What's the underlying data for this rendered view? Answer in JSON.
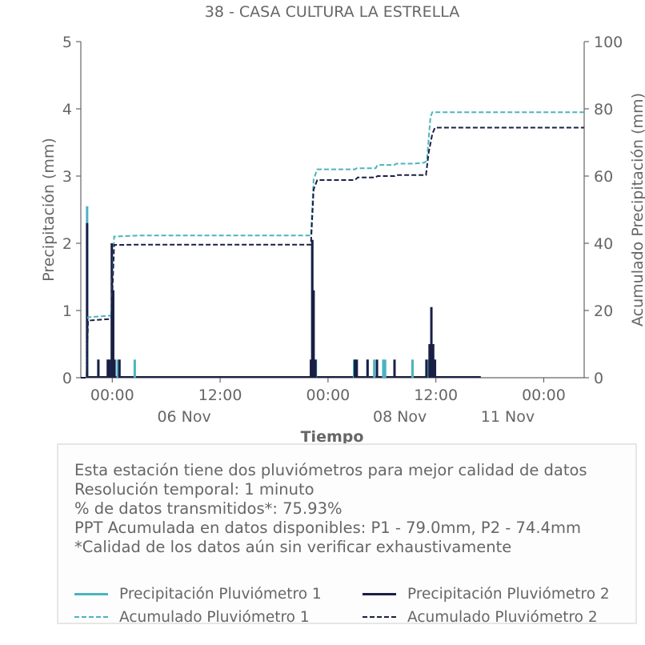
{
  "chart_data": {
    "type": "line",
    "title": "38 - CASA CULTURA LA ESTRELLA",
    "xlabel": "Tiempo",
    "ylabel": "Precipitación (mm)",
    "ylabel_right": "Acumulado Precipitación (mm)",
    "ylim": [
      0,
      5
    ],
    "ylim_right": [
      0,
      100
    ],
    "yticks": [
      "0",
      "1",
      "2",
      "3",
      "4",
      "5"
    ],
    "yticks_right": [
      "0",
      "20",
      "40",
      "60",
      "80",
      "100"
    ],
    "x_range_hours": [
      -3.5,
      52.5
    ],
    "xticks": [
      {
        "hour": 0,
        "label": "00:00",
        "sublabel": ""
      },
      {
        "hour": 12,
        "label": "12:00",
        "sublabel": "06 Nov"
      },
      {
        "hour": 24,
        "label": "00:00",
        "sublabel": ""
      },
      {
        "hour": 36,
        "label": "12:00",
        "sublabel": "08 Nov"
      },
      {
        "hour": 48,
        "label": "00:00",
        "sublabel": "11 Nov"
      }
    ],
    "grid": false,
    "colors": {
      "p1": "#4cb3bf",
      "p2": "#1a1f45",
      "axis": "#666666"
    },
    "series": [
      {
        "name": "Precipitación Pluviómetro 1",
        "axis": "left",
        "style": "bars",
        "points": [
          [
            -2.8,
            2.55
          ],
          [
            -1.55,
            0.27
          ],
          [
            -0.45,
            0.27
          ],
          [
            -0.05,
            1.0
          ],
          [
            0.1,
            1.3
          ],
          [
            0.6,
            0.27
          ],
          [
            2.5,
            0.27
          ],
          [
            22.25,
            2.05
          ],
          [
            22.65,
            0.27
          ],
          [
            26.9,
            0.27
          ],
          [
            28.4,
            0.27
          ],
          [
            29.15,
            0.27
          ],
          [
            30.15,
            0.27
          ],
          [
            30.35,
            0.27
          ],
          [
            33.4,
            0.27
          ],
          [
            35.1,
            0.27
          ],
          [
            35.35,
            0.27
          ],
          [
            35.55,
            0.5
          ],
          [
            35.65,
            0.3
          ],
          [
            35.9,
            0.27
          ]
        ]
      },
      {
        "name": "Precipitación Pluviómetro 2",
        "axis": "left",
        "style": "bars",
        "points": [
          [
            -2.8,
            2.3
          ],
          [
            -1.55,
            0.27
          ],
          [
            -0.5,
            0.27
          ],
          [
            -0.3,
            0.27
          ],
          [
            -0.05,
            2.0
          ],
          [
            0.1,
            1.3
          ],
          [
            0.25,
            0.27
          ],
          [
            0.8,
            0.27
          ],
          [
            22.1,
            0.27
          ],
          [
            22.25,
            2.05
          ],
          [
            22.4,
            1.3
          ],
          [
            22.6,
            0.27
          ],
          [
            27.0,
            0.27
          ],
          [
            27.2,
            0.27
          ],
          [
            28.4,
            0.27
          ],
          [
            29.45,
            0.27
          ],
          [
            31.4,
            0.27
          ],
          [
            34.95,
            0.27
          ],
          [
            35.3,
            0.5
          ],
          [
            35.5,
            1.05
          ],
          [
            35.7,
            0.5
          ],
          [
            35.9,
            0.27
          ]
        ]
      },
      {
        "name": "Acumulado Pluviómetro 1",
        "axis": "right",
        "style": "dashed",
        "points": [
          [
            -3.5,
            0
          ],
          [
            -2.85,
            0
          ],
          [
            -2.7,
            18.0
          ],
          [
            -0.1,
            18.5
          ],
          [
            0.2,
            42.0
          ],
          [
            3.0,
            42.3
          ],
          [
            22.1,
            42.3
          ],
          [
            22.4,
            59.0
          ],
          [
            22.8,
            62.0
          ],
          [
            27.0,
            62.0
          ],
          [
            27.2,
            62.3
          ],
          [
            29.3,
            62.3
          ],
          [
            29.5,
            63.3
          ],
          [
            31.4,
            63.3
          ],
          [
            31.6,
            63.7
          ],
          [
            33.6,
            63.7
          ],
          [
            34.7,
            64.0
          ],
          [
            35.0,
            64.5
          ],
          [
            35.4,
            77.5
          ],
          [
            35.6,
            79.0
          ],
          [
            52.5,
            79.0
          ]
        ]
      },
      {
        "name": "Acumulado Pluviómetro 2",
        "axis": "right",
        "style": "dashed",
        "points": [
          [
            -3.5,
            0
          ],
          [
            -2.85,
            0
          ],
          [
            -2.7,
            17.0
          ],
          [
            -0.1,
            17.5
          ],
          [
            0.2,
            39.5
          ],
          [
            3.0,
            39.6
          ],
          [
            22.1,
            39.6
          ],
          [
            22.4,
            56.0
          ],
          [
            22.8,
            58.8
          ],
          [
            27.0,
            58.8
          ],
          [
            27.3,
            59.6
          ],
          [
            29.3,
            59.6
          ],
          [
            29.5,
            60.0
          ],
          [
            31.4,
            60.0
          ],
          [
            31.6,
            60.3
          ],
          [
            34.9,
            60.3
          ],
          [
            35.2,
            67.0
          ],
          [
            35.6,
            72.5
          ],
          [
            35.9,
            74.4
          ],
          [
            52.5,
            74.4
          ]
        ]
      }
    ]
  },
  "info": {
    "lines": [
      "Esta estación tiene dos pluviómetros para mejor calidad de datos",
      "Resolución temporal: 1 minuto",
      "% de datos transmitidos*: 75.93%",
      "PPT Acumulada en datos disponibles: P1 - 79.0mm, P2 - 74.4mm",
      "*Calidad de los datos aún sin verificar exhaustivamente"
    ]
  },
  "legend": {
    "items": [
      {
        "label": "Precipitación Pluviómetro 1",
        "color": "#4cb3bf",
        "style": "solid"
      },
      {
        "label": "Precipitación Pluviómetro 2",
        "color": "#1a1f45",
        "style": "solid"
      },
      {
        "label": "Acumulado Pluviómetro 1",
        "color": "#4cb3bf",
        "style": "dashed"
      },
      {
        "label": "Acumulado Pluviómetro 2",
        "color": "#1a1f45",
        "style": "dashed"
      }
    ]
  }
}
